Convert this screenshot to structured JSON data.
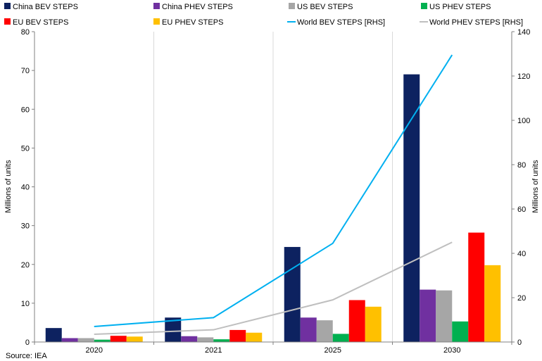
{
  "source": "Source: IEA",
  "colors": {
    "china_bev": "#0d2260",
    "china_phev": "#7030a0",
    "us_bev": "#a6a6a6",
    "us_phev": "#00b050",
    "eu_bev": "#ff0000",
    "eu_phev": "#ffc000",
    "world_bev": "#00b0f0",
    "world_phev": "#bfbfbf",
    "grid": "#d9d9d9",
    "axis": "#808080"
  },
  "chart_data": {
    "type": "bar",
    "categories": [
      "2020",
      "2021",
      "2025",
      "2030"
    ],
    "ylabel": "Millions of units",
    "ylabel_right": "Millions of units",
    "ylim": [
      0,
      80
    ],
    "ylim_right": [
      0,
      140
    ],
    "yticks": [
      "0",
      "10",
      "20",
      "30",
      "40",
      "50",
      "60",
      "70",
      "80"
    ],
    "yticks_right": [
      "0",
      "20",
      "40",
      "60",
      "80",
      "100",
      "120",
      "140"
    ],
    "grid": "vertical",
    "legend_position": "top",
    "series": [
      {
        "name": "China BEV STEPS",
        "type": "bar",
        "color_key": "china_bev",
        "values": [
          3.6,
          6.3,
          24.5,
          69.0
        ]
      },
      {
        "name": "China PHEV STEPS",
        "type": "bar",
        "color_key": "china_phev",
        "values": [
          1.0,
          1.5,
          6.3,
          13.5
        ]
      },
      {
        "name": "US BEV STEPS",
        "type": "bar",
        "color_key": "us_bev",
        "values": [
          1.0,
          1.2,
          5.6,
          13.3
        ]
      },
      {
        "name": "US PHEV STEPS",
        "type": "bar",
        "color_key": "us_phev",
        "values": [
          0.6,
          0.7,
          2.1,
          5.3
        ]
      },
      {
        "name": "EU BEV STEPS",
        "type": "bar",
        "color_key": "eu_bev",
        "values": [
          1.6,
          3.1,
          10.8,
          28.2
        ]
      },
      {
        "name": "EU PHEV STEPS",
        "type": "bar",
        "color_key": "eu_phev",
        "values": [
          1.4,
          2.4,
          9.1,
          19.8
        ]
      },
      {
        "name": "World BEV STEPS [RHS]",
        "type": "line",
        "axis": "right",
        "color_key": "world_bev",
        "values": [
          7.0,
          11.0,
          44.5,
          129.5
        ]
      },
      {
        "name": "World PHEV STEPS [RHS]",
        "type": "line",
        "axis": "right",
        "color_key": "world_phev",
        "values": [
          3.5,
          5.5,
          19.0,
          45.0
        ]
      }
    ]
  }
}
